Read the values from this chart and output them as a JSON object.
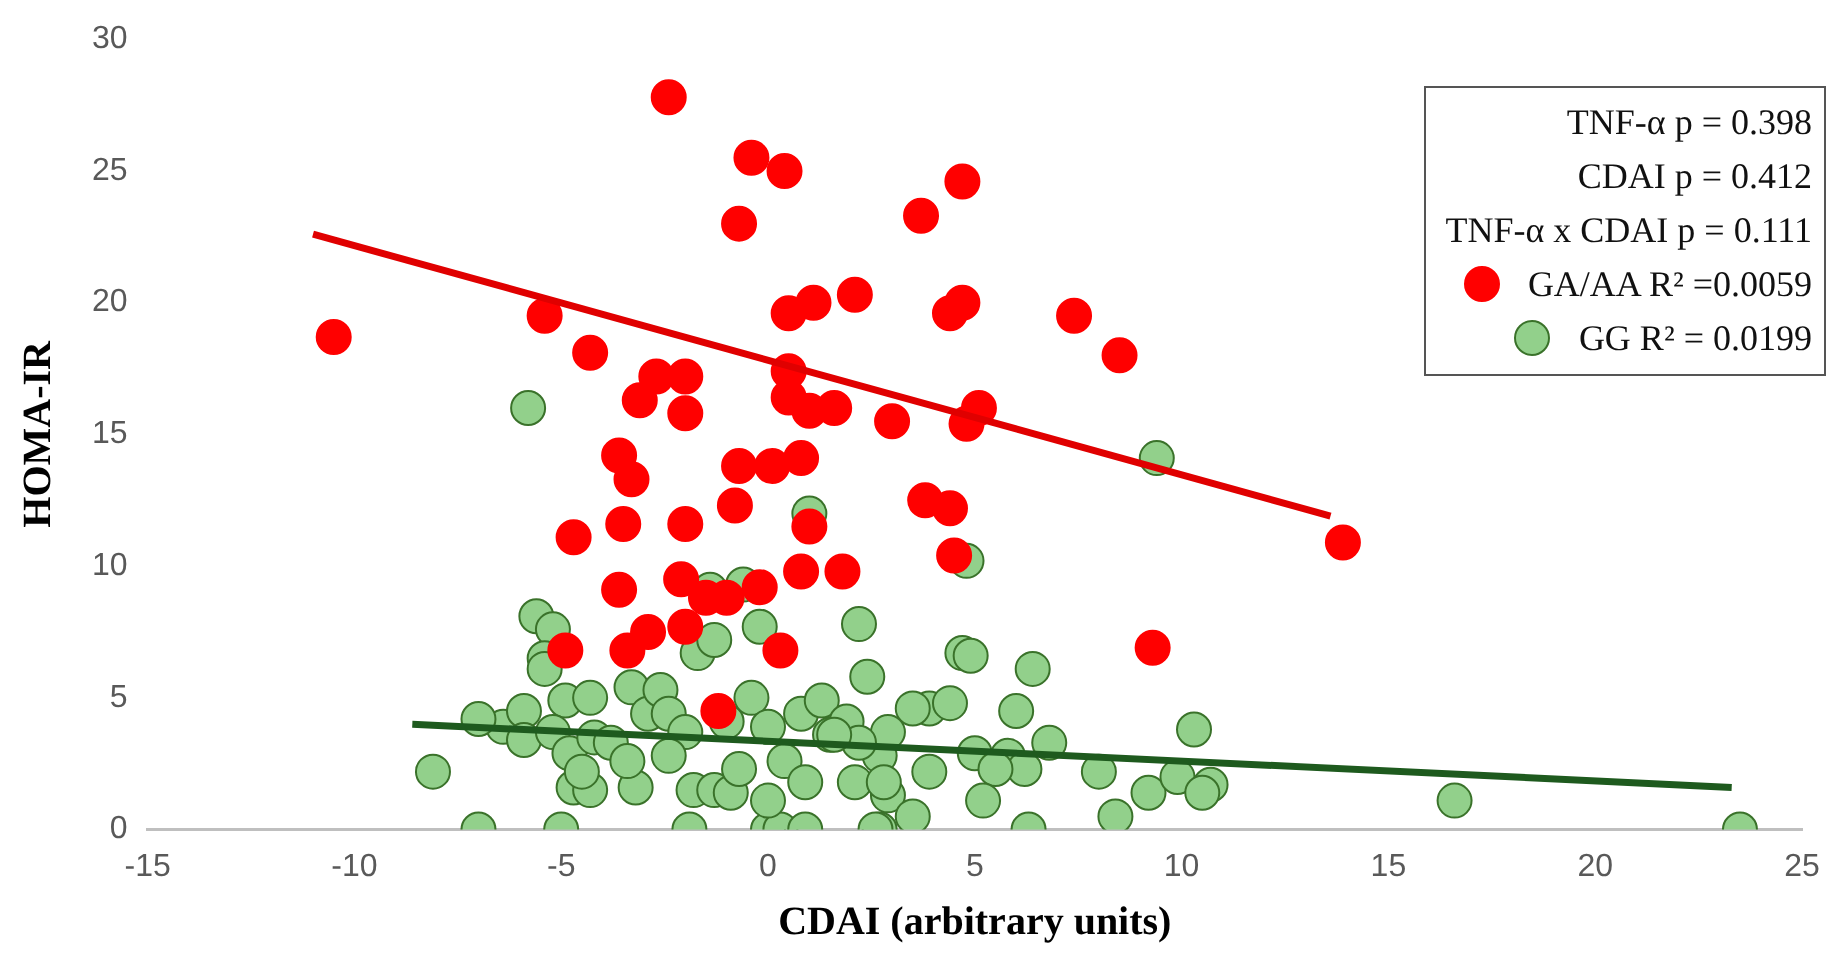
{
  "chart_data": {
    "type": "scatter",
    "xlabel": "CDAI (arbitrary units)",
    "ylabel": "HOMA-IR",
    "xlim": [
      -15,
      25
    ],
    "xticks": [
      -15,
      -10,
      -5,
      0,
      5,
      10,
      15,
      20,
      25
    ],
    "ylim": [
      0,
      30
    ],
    "yticks": [
      0,
      5,
      10,
      15,
      20,
      25,
      30
    ],
    "grid": false,
    "legend": "top right",
    "annotations": [
      "TNF-α p = 0.398",
      "CDAI p = 0.412",
      "TNF-α x CDAI p = 0.111"
    ],
    "series": [
      {
        "name": "GA/AA R² =0.0059",
        "color": "#ff0000",
        "marker": "circle",
        "x": [
          -10.5,
          -2.4,
          -0.4,
          0.4,
          -0.7,
          3.7,
          4.7,
          -5.4,
          -4.3,
          -2.7,
          -2.0,
          -3.1,
          -2.0,
          0.5,
          1.1,
          2.1,
          4.4,
          4.7,
          7.4,
          8.5,
          0.5,
          0.5,
          1.0,
          1.6,
          3.0,
          4.8,
          5.1,
          -3.6,
          -3.3,
          -0.7,
          0.1,
          0.8,
          3.8,
          4.4,
          -3.5,
          -2.0,
          -0.8,
          -4.7,
          1.0,
          4.5,
          13.9,
          -3.6,
          -2.1,
          -0.2,
          0.8,
          1.8,
          -1.0,
          -1.5,
          -4.9,
          -2.9,
          -2.0,
          -3.4,
          0.3,
          9.3,
          -1.2
        ],
        "values": [
          18.7,
          27.8,
          25.5,
          25.0,
          23.0,
          23.3,
          24.6,
          19.5,
          18.1,
          17.2,
          17.2,
          16.3,
          15.8,
          19.6,
          20.0,
          20.3,
          19.6,
          20.0,
          19.5,
          18.0,
          17.4,
          16.4,
          15.9,
          16.0,
          15.5,
          15.4,
          16.0,
          14.2,
          13.3,
          13.8,
          13.8,
          14.1,
          12.5,
          12.2,
          11.6,
          11.6,
          12.3,
          11.1,
          11.5,
          10.4,
          10.9,
          9.1,
          9.5,
          9.2,
          9.8,
          9.8,
          8.8,
          8.8,
          6.8,
          7.5,
          7.7,
          6.8,
          6.8,
          6.9,
          4.5
        ]
      },
      {
        "name": "GG R² = 0.0199",
        "color": "#92d08b",
        "marker": "circle",
        "x": [
          -8.1,
          -7.0,
          -5.0,
          -1.9,
          0.0,
          0.3,
          0.9,
          2.7,
          -5.6,
          -5.2,
          -5.4,
          -5.4,
          -3.3,
          -6.4,
          -5.9,
          -5.9,
          -4.9,
          -4.3,
          -5.2,
          -4.8,
          -4.7,
          -4.3,
          -3.2,
          -4.2,
          -3.8,
          -3.4,
          -2.9,
          -2.6,
          -2.4,
          -2.0,
          -2.4,
          -1.8,
          -1.3,
          -0.9,
          -1.7,
          -1.3,
          -1.4,
          -0.6,
          -0.2,
          -0.4,
          -1.0,
          0.0,
          -0.7,
          0.0,
          0.4,
          0.8,
          1.3,
          1.5,
          0.9,
          1.9,
          2.2,
          2.4,
          2.1,
          2.7,
          2.9,
          4.7,
          4.9,
          6.4,
          4.8,
          6.0,
          6.8,
          3.9,
          4.4,
          3.5,
          2.9,
          2.2,
          1.6,
          3.9,
          5.0,
          5.8,
          6.2,
          5.5,
          5.2,
          3.5,
          2.6,
          6.3,
          2.8,
          8.0,
          8.4,
          9.2,
          10.3,
          9.9,
          10.7,
          10.5,
          16.6,
          23.5,
          -5.8,
          9.4,
          1.0,
          -7.0,
          -4.5
        ],
        "values": [
          2.2,
          0,
          0,
          0,
          0,
          0,
          0,
          0,
          8.1,
          7.6,
          6.5,
          6.1,
          5.4,
          3.9,
          4.5,
          3.4,
          4.9,
          5.0,
          3.7,
          2.9,
          1.6,
          1.5,
          1.6,
          3.5,
          3.3,
          2.6,
          4.4,
          5.3,
          4.4,
          3.7,
          2.8,
          1.5,
          1.5,
          1.4,
          6.7,
          7.2,
          9.1,
          9.3,
          7.7,
          5.0,
          4.1,
          3.9,
          2.3,
          1.1,
          2.6,
          4.4,
          4.9,
          3.6,
          1.8,
          4.1,
          7.8,
          5.8,
          1.8,
          2.8,
          1.3,
          6.7,
          6.6,
          6.1,
          10.2,
          4.5,
          3.3,
          4.6,
          4.8,
          4.6,
          3.7,
          3.3,
          3.6,
          2.2,
          2.9,
          2.8,
          2.3,
          2.3,
          1.1,
          0.5,
          0,
          0,
          1.8,
          2.2,
          0.5,
          1.4,
          3.8,
          2.0,
          1.7,
          1.4,
          1.1,
          0,
          16.0,
          14.1,
          12.0,
          4.2,
          2.2
        ]
      },
      {
        "type": "line",
        "marker": "none",
        "color": "#e00000",
        "x": [
          -11,
          13.6
        ],
        "values": [
          22.6,
          11.9
        ]
      },
      {
        "type": "line",
        "marker": "none",
        "color": "#1e5a1e",
        "x": [
          -8.6,
          23.3
        ],
        "values": [
          4.0,
          1.6
        ]
      }
    ]
  }
}
